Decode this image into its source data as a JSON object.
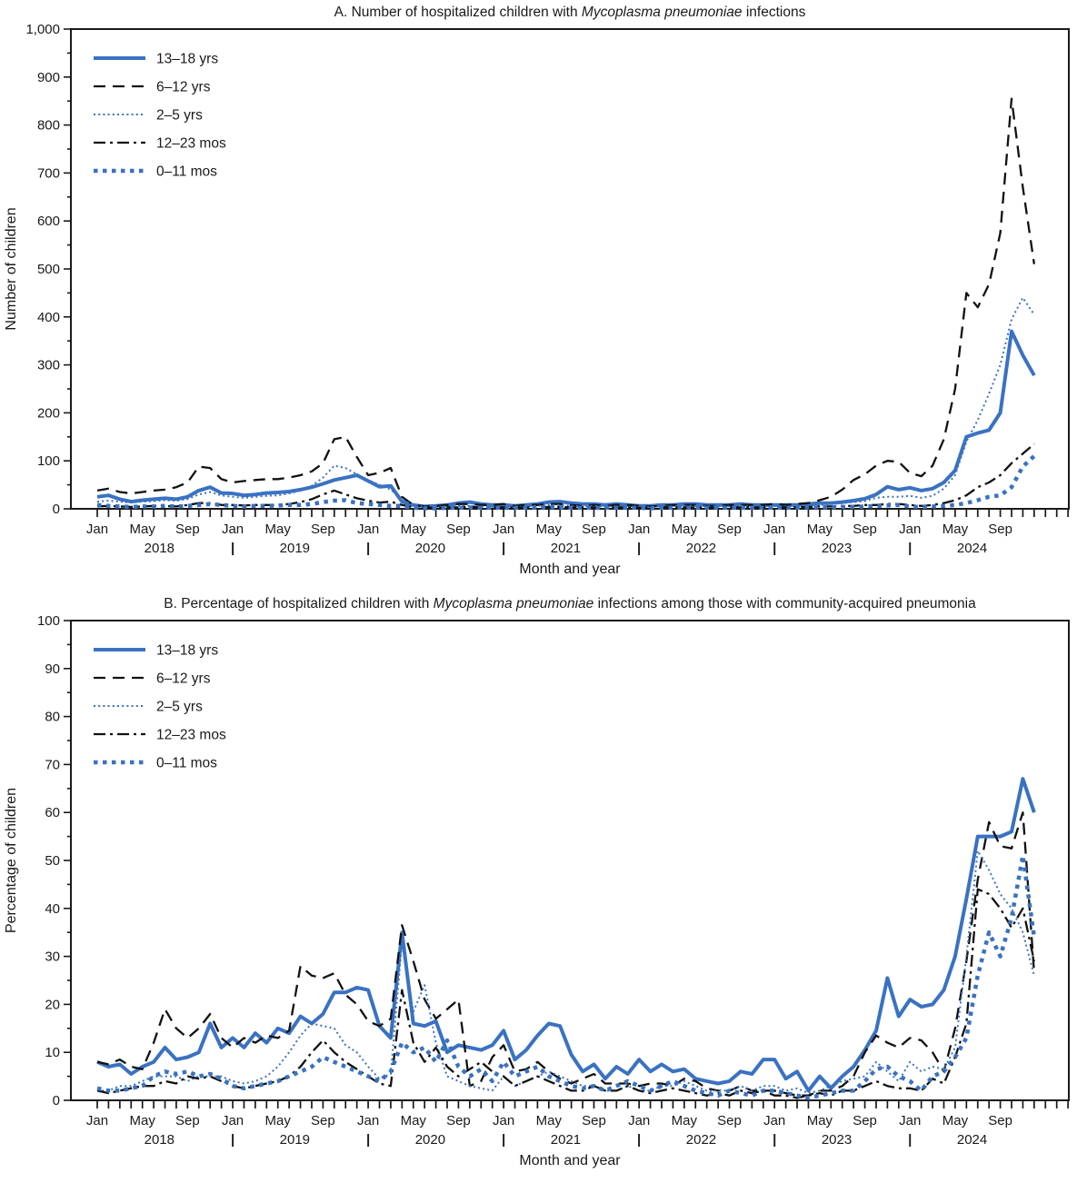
{
  "figure_title": "Hospitalized children with Mycoplasma pneumoniae infections",
  "accent_blue": "#3A72C2",
  "line_black": "#111111",
  "chart_data": [
    {
      "type": "line",
      "panel": "A",
      "title_prefix": "A. Number of hospitalized children with ",
      "title_italic": "Mycoplasma pneumoniae",
      "title_suffix": " infections",
      "xlabel": "Month and year",
      "ylabel": "Number of children",
      "ylim": [
        0,
        1000
      ],
      "ytick_step": 100,
      "yminor_step": 50,
      "x_start": "2018-01",
      "x_end": "2024-12",
      "years": [
        "2018",
        "2019",
        "2020",
        "2021",
        "2022",
        "2023",
        "2024"
      ],
      "month_labels": [
        "Jan",
        "May",
        "Sep"
      ],
      "grid": false,
      "legend_position": "top-left",
      "series": [
        {
          "name": "13–18 yrs",
          "style": "solid",
          "color": "#3A72C2",
          "values": [
            25,
            28,
            20,
            15,
            18,
            20,
            22,
            20,
            25,
            38,
            45,
            33,
            32,
            28,
            30,
            33,
            34,
            36,
            40,
            45,
            52,
            60,
            65,
            70,
            58,
            46,
            48,
            15,
            8,
            5,
            6,
            8,
            12,
            14,
            10,
            8,
            8,
            6,
            8,
            10,
            14,
            15,
            12,
            10,
            10,
            8,
            10,
            8,
            6,
            6,
            8,
            8,
            10,
            10,
            8,
            8,
            8,
            10,
            8,
            8,
            8,
            8,
            8,
            10,
            12,
            12,
            14,
            17,
            21,
            30,
            46,
            40,
            44,
            38,
            42,
            55,
            80,
            150,
            158,
            164,
            200,
            370,
            320,
            278
          ]
        },
        {
          "name": "6–12 yrs",
          "style": "long-dash",
          "color": "#111111",
          "values": [
            38,
            42,
            35,
            32,
            35,
            38,
            40,
            45,
            55,
            88,
            85,
            62,
            55,
            58,
            60,
            62,
            62,
            65,
            70,
            78,
            95,
            145,
            150,
            108,
            70,
            75,
            85,
            25,
            8,
            5,
            6,
            8,
            10,
            10,
            8,
            8,
            10,
            6,
            8,
            8,
            10,
            10,
            8,
            6,
            8,
            6,
            8,
            8,
            6,
            5,
            6,
            8,
            8,
            8,
            6,
            6,
            8,
            8,
            8,
            8,
            10,
            8,
            10,
            12,
            18,
            25,
            40,
            60,
            72,
            90,
            100,
            98,
            75,
            68,
            90,
            145,
            250,
            450,
            420,
            468,
            575,
            855,
            670,
            510
          ]
        },
        {
          "name": "2–5 yrs",
          "style": "dot",
          "color": "#3A72C2",
          "values": [
            15,
            17,
            15,
            13,
            15,
            16,
            18,
            17,
            20,
            30,
            35,
            28,
            25,
            23,
            25,
            27,
            28,
            32,
            38,
            48,
            65,
            90,
            85,
            72,
            60,
            50,
            40,
            20,
            8,
            4,
            4,
            5,
            6,
            6,
            5,
            4,
            5,
            4,
            5,
            6,
            8,
            8,
            6,
            5,
            6,
            5,
            5,
            5,
            4,
            4,
            5,
            5,
            6,
            6,
            5,
            5,
            5,
            6,
            5,
            5,
            6,
            5,
            6,
            8,
            8,
            10,
            12,
            14,
            16,
            23,
            25,
            25,
            27,
            23,
            27,
            42,
            70,
            140,
            185,
            240,
            300,
            395,
            440,
            405
          ]
        },
        {
          "name": "12–23 mos",
          "style": "dash-dot",
          "color": "#111111",
          "values": [
            5,
            6,
            5,
            4,
            5,
            6,
            6,
            5,
            8,
            12,
            12,
            8,
            8,
            7,
            8,
            8,
            8,
            10,
            14,
            20,
            30,
            38,
            30,
            22,
            17,
            13,
            15,
            8,
            3,
            2,
            2,
            3,
            3,
            4,
            3,
            3,
            3,
            2,
            3,
            3,
            4,
            4,
            3,
            3,
            3,
            3,
            3,
            3,
            2,
            2,
            3,
            3,
            3,
            3,
            2,
            2,
            3,
            3,
            3,
            3,
            3,
            3,
            3,
            4,
            5,
            5,
            6,
            6,
            8,
            8,
            10,
            10,
            8,
            6,
            8,
            12,
            18,
            28,
            45,
            55,
            70,
            95,
            115,
            135
          ]
        },
        {
          "name": "0–11 mos",
          "style": "square-dash",
          "color": "#3A72C2",
          "values": [
            8,
            6,
            5,
            4,
            5,
            5,
            6,
            5,
            6,
            8,
            10,
            8,
            6,
            5,
            6,
            6,
            7,
            8,
            8,
            10,
            14,
            17,
            18,
            12,
            10,
            8,
            6,
            6,
            2,
            1,
            1,
            2,
            2,
            3,
            2,
            2,
            2,
            2,
            2,
            3,
            3,
            3,
            2,
            2,
            2,
            2,
            2,
            2,
            2,
            1,
            2,
            2,
            2,
            2,
            2,
            2,
            2,
            2,
            2,
            2,
            2,
            2,
            2,
            3,
            3,
            3,
            4,
            4,
            5,
            6,
            7,
            8,
            5,
            4,
            5,
            6,
            8,
            12,
            18,
            25,
            28,
            45,
            88,
            110
          ]
        }
      ]
    },
    {
      "type": "line",
      "panel": "B",
      "title_prefix": "B. Percentage of hospitalized children with ",
      "title_italic": "Mycoplasma pneumoniae",
      "title_suffix": " infections among those with community-acquired pneumonia",
      "xlabel": "Month and year",
      "ylabel": "Percentage of children",
      "ylim": [
        0,
        100
      ],
      "ytick_step": 10,
      "yminor_step": 5,
      "x_start": "2018-01",
      "x_end": "2024-12",
      "years": [
        "2018",
        "2019",
        "2020",
        "2021",
        "2022",
        "2023",
        "2024"
      ],
      "month_labels": [
        "Jan",
        "May",
        "Sep"
      ],
      "grid": false,
      "legend_position": "top-left",
      "series": [
        {
          "name": "13–18 yrs",
          "style": "solid",
          "color": "#3A72C2",
          "values": [
            8,
            7,
            7.5,
            5.5,
            7,
            8,
            11,
            8.5,
            9,
            10,
            16,
            11,
            13,
            11,
            14,
            12,
            15,
            14,
            17.5,
            16,
            18,
            22.5,
            22.5,
            23.5,
            23,
            15.5,
            13,
            35,
            16,
            15.5,
            16.5,
            10,
            11.5,
            11,
            10.5,
            11.5,
            14.5,
            8.5,
            10.5,
            13.5,
            16,
            15.5,
            9.5,
            6,
            7.5,
            4.5,
            7,
            5.5,
            8.5,
            6,
            7.5,
            6,
            6.5,
            4.5,
            4,
            3.5,
            4,
            6,
            5.5,
            8.5,
            8.5,
            4.5,
            6,
            2,
            5,
            2.5,
            5,
            7,
            10.5,
            14.5,
            25.5,
            17.5,
            21,
            19.5,
            20,
            23,
            30,
            42,
            55,
            55,
            55,
            56,
            67,
            60
          ]
        },
        {
          "name": "6–12 yrs",
          "style": "long-dash",
          "color": "#111111",
          "values": [
            8,
            7.5,
            8.5,
            7,
            6.5,
            12,
            19,
            15,
            13,
            15,
            18,
            13,
            11,
            13,
            12,
            13.5,
            13,
            14.5,
            28,
            26,
            25.5,
            26.5,
            22,
            20,
            16.5,
            15.5,
            17,
            36.5,
            29,
            21,
            17,
            19,
            21,
            3,
            4,
            9,
            11.5,
            6,
            6.5,
            8,
            6,
            4.5,
            3.5,
            4.5,
            5.5,
            3.5,
            3.5,
            3.5,
            3,
            3.5,
            3.5,
            3,
            4.5,
            4,
            2.5,
            2,
            2,
            3,
            2,
            2,
            2,
            1.5,
            1,
            1,
            2,
            2,
            3,
            5,
            10,
            13.5,
            12,
            11,
            13,
            12.5,
            10,
            6,
            15,
            29,
            46,
            58,
            53,
            52.5,
            60,
            26.5
          ]
        },
        {
          "name": "2–5 yrs",
          "style": "dot",
          "color": "#3A72C2",
          "values": [
            2,
            2,
            3,
            3,
            4,
            5,
            5,
            5,
            4,
            5,
            5,
            5,
            4,
            3.5,
            4,
            5,
            7,
            10,
            13.5,
            16,
            15.5,
            15,
            11.5,
            10,
            7,
            4.5,
            5.5,
            33,
            18.5,
            24,
            12,
            5,
            4,
            3,
            2.5,
            2,
            5,
            3,
            4,
            5,
            6,
            5,
            4,
            3,
            3,
            2,
            2,
            3,
            2,
            2,
            3,
            3,
            4,
            3,
            2,
            2,
            2,
            3,
            2,
            3,
            3,
            2,
            2.5,
            1.5,
            2,
            3,
            4,
            4.5,
            5,
            8,
            6,
            4,
            8,
            6,
            7,
            6.5,
            11,
            30,
            52,
            48,
            43,
            40,
            35,
            26
          ]
        },
        {
          "name": "12–23 mos",
          "style": "dash-dot",
          "color": "#111111",
          "values": [
            2,
            1.5,
            2,
            2.5,
            3,
            3,
            4,
            3.5,
            5,
            4.5,
            5,
            4,
            3,
            2.5,
            3,
            3.5,
            4,
            5,
            7,
            10,
            12.5,
            10,
            8,
            6.5,
            5,
            3.5,
            3,
            23,
            12,
            8,
            11,
            7,
            5,
            6.5,
            8,
            6,
            5,
            3,
            4,
            5,
            4,
            3,
            2,
            2,
            3,
            2,
            2,
            3,
            2,
            1.5,
            2,
            2.5,
            2,
            1.5,
            1,
            1.5,
            1,
            2,
            1.5,
            2,
            1,
            1,
            0.5,
            1,
            1.5,
            1,
            2,
            2,
            3,
            4,
            3,
            2.5,
            2.5,
            2,
            4.5,
            3.5,
            9,
            16,
            44,
            43,
            40,
            36,
            40,
            29
          ]
        },
        {
          "name": "0–11 mos",
          "style": "square-dash",
          "color": "#3A72C2",
          "values": [
            2.5,
            2,
            2,
            2.5,
            3,
            5,
            6,
            5.5,
            6,
            5,
            5.5,
            4.5,
            3,
            2.5,
            3,
            3.5,
            4,
            5,
            6,
            7,
            9,
            8,
            7,
            6,
            5,
            4,
            6,
            12,
            10,
            11,
            8,
            12.5,
            7,
            5,
            6.5,
            4,
            8,
            5,
            6,
            7,
            5,
            4,
            3,
            2.5,
            3,
            2,
            3,
            4,
            3,
            2,
            3,
            4,
            3,
            2,
            1.5,
            1,
            2,
            1.5,
            1,
            2,
            2,
            1.5,
            1,
            0.5,
            1,
            1.5,
            2,
            2,
            4,
            6.5,
            7,
            5,
            4,
            2,
            5,
            6,
            9,
            13,
            26,
            35,
            30,
            38,
            51,
            34
          ]
        }
      ]
    }
  ]
}
